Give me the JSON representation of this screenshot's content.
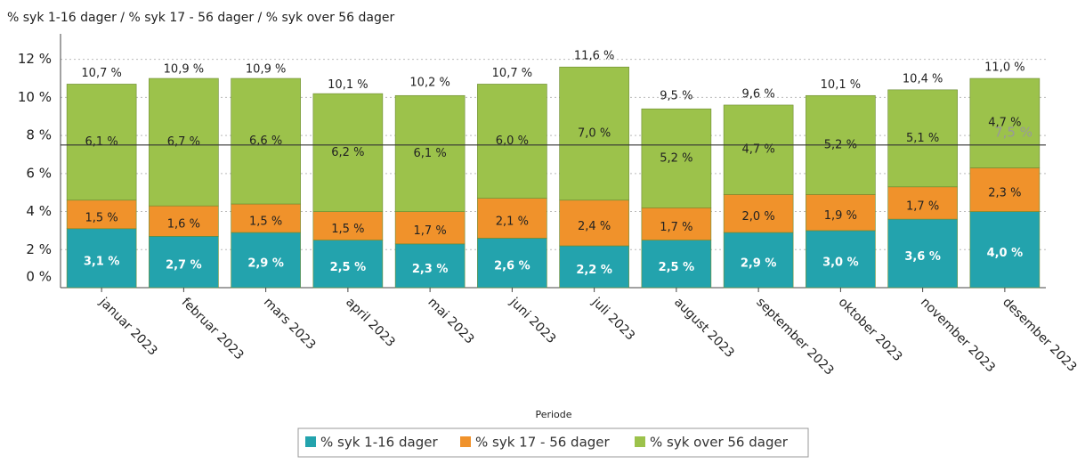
{
  "chart_data": {
    "type": "stacked_bar",
    "title": "% syk 1-16 dager / % syk 17 - 56 dager / % syk over 56 dager",
    "x_label": "Periode",
    "categories": [
      "januar 2023",
      "februar 2023",
      "mars 2023",
      "april 2023",
      "mai 2023",
      "juni 2023",
      "juli 2023",
      "august 2023",
      "september 2023",
      "oktober 2023",
      "november 2023",
      "desember 2023"
    ],
    "series": [
      {
        "name": "% syk 1-16 dager",
        "color": "#23a3ad",
        "label_color": "#ffffff",
        "values": [
          3.1,
          2.7,
          2.9,
          2.5,
          2.3,
          2.6,
          2.2,
          2.5,
          2.9,
          3.0,
          3.6,
          4.0
        ],
        "value_labels": [
          "3,1 %",
          "2,7 %",
          "2,9 %",
          "2,5 %",
          "2,3 %",
          "2,6 %",
          "2,2 %",
          "2,5 %",
          "2,9 %",
          "3,0 %",
          "3,6 %",
          "4,0 %"
        ]
      },
      {
        "name": "% syk 17 - 56 dager",
        "color": "#f0922b",
        "label_color": "#222222",
        "values": [
          1.5,
          1.6,
          1.5,
          1.5,
          1.7,
          2.1,
          2.4,
          1.7,
          2.0,
          1.9,
          1.7,
          2.3
        ],
        "value_labels": [
          "1,5 %",
          "1,6 %",
          "1,5 %",
          "1,5 %",
          "1,7 %",
          "2,1 %",
          "2,4 %",
          "1,7 %",
          "2,0 %",
          "1,9 %",
          "1,7 %",
          "2,3 %"
        ]
      },
      {
        "name": "% syk over 56 dager",
        "color": "#9cc24b",
        "label_color": "#222222",
        "values": [
          6.1,
          6.7,
          6.6,
          6.2,
          6.1,
          6.0,
          7.0,
          5.2,
          4.7,
          5.2,
          5.1,
          4.7
        ],
        "value_labels": [
          "6,1 %",
          "6,7 %",
          "6,6 %",
          "6,2 %",
          "6,1 %",
          "6,0 %",
          "7,0 %",
          "5,2 %",
          "4,7 %",
          "5,2 %",
          "5,1 %",
          "4,7 %"
        ]
      }
    ],
    "totals": {
      "values": [
        10.7,
        10.9,
        10.9,
        10.1,
        10.2,
        10.7,
        11.6,
        9.5,
        9.6,
        10.1,
        10.4,
        11.0
      ],
      "value_labels": [
        "10,7 %",
        "10,9 %",
        "10,9 %",
        "10,1 %",
        "10,2 %",
        "10,7 %",
        "11,6 %",
        "9,5 %",
        "9,6 %",
        "10,1 %",
        "10,4 %",
        "11,0 %"
      ]
    },
    "reference_line": {
      "value": 7.5,
      "label": "7,5 %"
    },
    "ylim": [
      0,
      12.5
    ],
    "yticks": [
      {
        "value": 0,
        "label": "0 %"
      },
      {
        "value": 2,
        "label": "2 %"
      },
      {
        "value": 4,
        "label": "4 %"
      },
      {
        "value": 6,
        "label": "6 %"
      },
      {
        "value": 8,
        "label": "8 %"
      },
      {
        "value": 10,
        "label": "10 %"
      },
      {
        "value": 12,
        "label": "12 %"
      }
    ],
    "grid": true
  }
}
